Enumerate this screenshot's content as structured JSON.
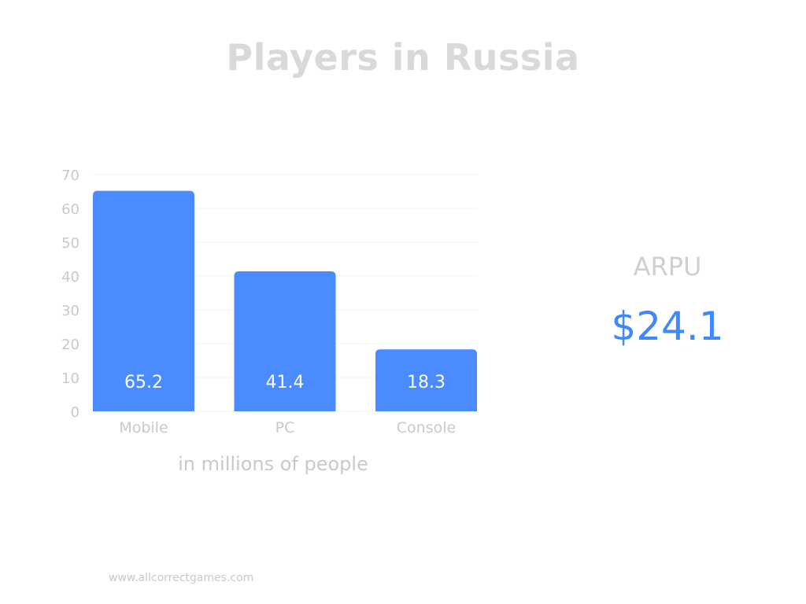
{
  "title": "Players in Russia",
  "chart_note": "in millions of people",
  "arpu": {
    "label": "ARPU",
    "value": "$24.1"
  },
  "footer": "www.allcorrectgames.com",
  "colors": {
    "bar": "#4a8cff",
    "bar_label": "#ffffff",
    "tick": "#c9c9c9",
    "grid": "#f1f1f1",
    "accent": "#3f88ff"
  },
  "chart_data": {
    "type": "bar",
    "categories": [
      "Mobile",
      "PC",
      "Console"
    ],
    "values": [
      65.2,
      41.4,
      18.3
    ],
    "value_labels": [
      "65.2",
      "41.4",
      "18.3"
    ],
    "yticks": [
      0,
      10,
      20,
      30,
      40,
      50,
      60,
      70
    ],
    "ylim": [
      0,
      70
    ],
    "grid": true,
    "legend": "none"
  }
}
